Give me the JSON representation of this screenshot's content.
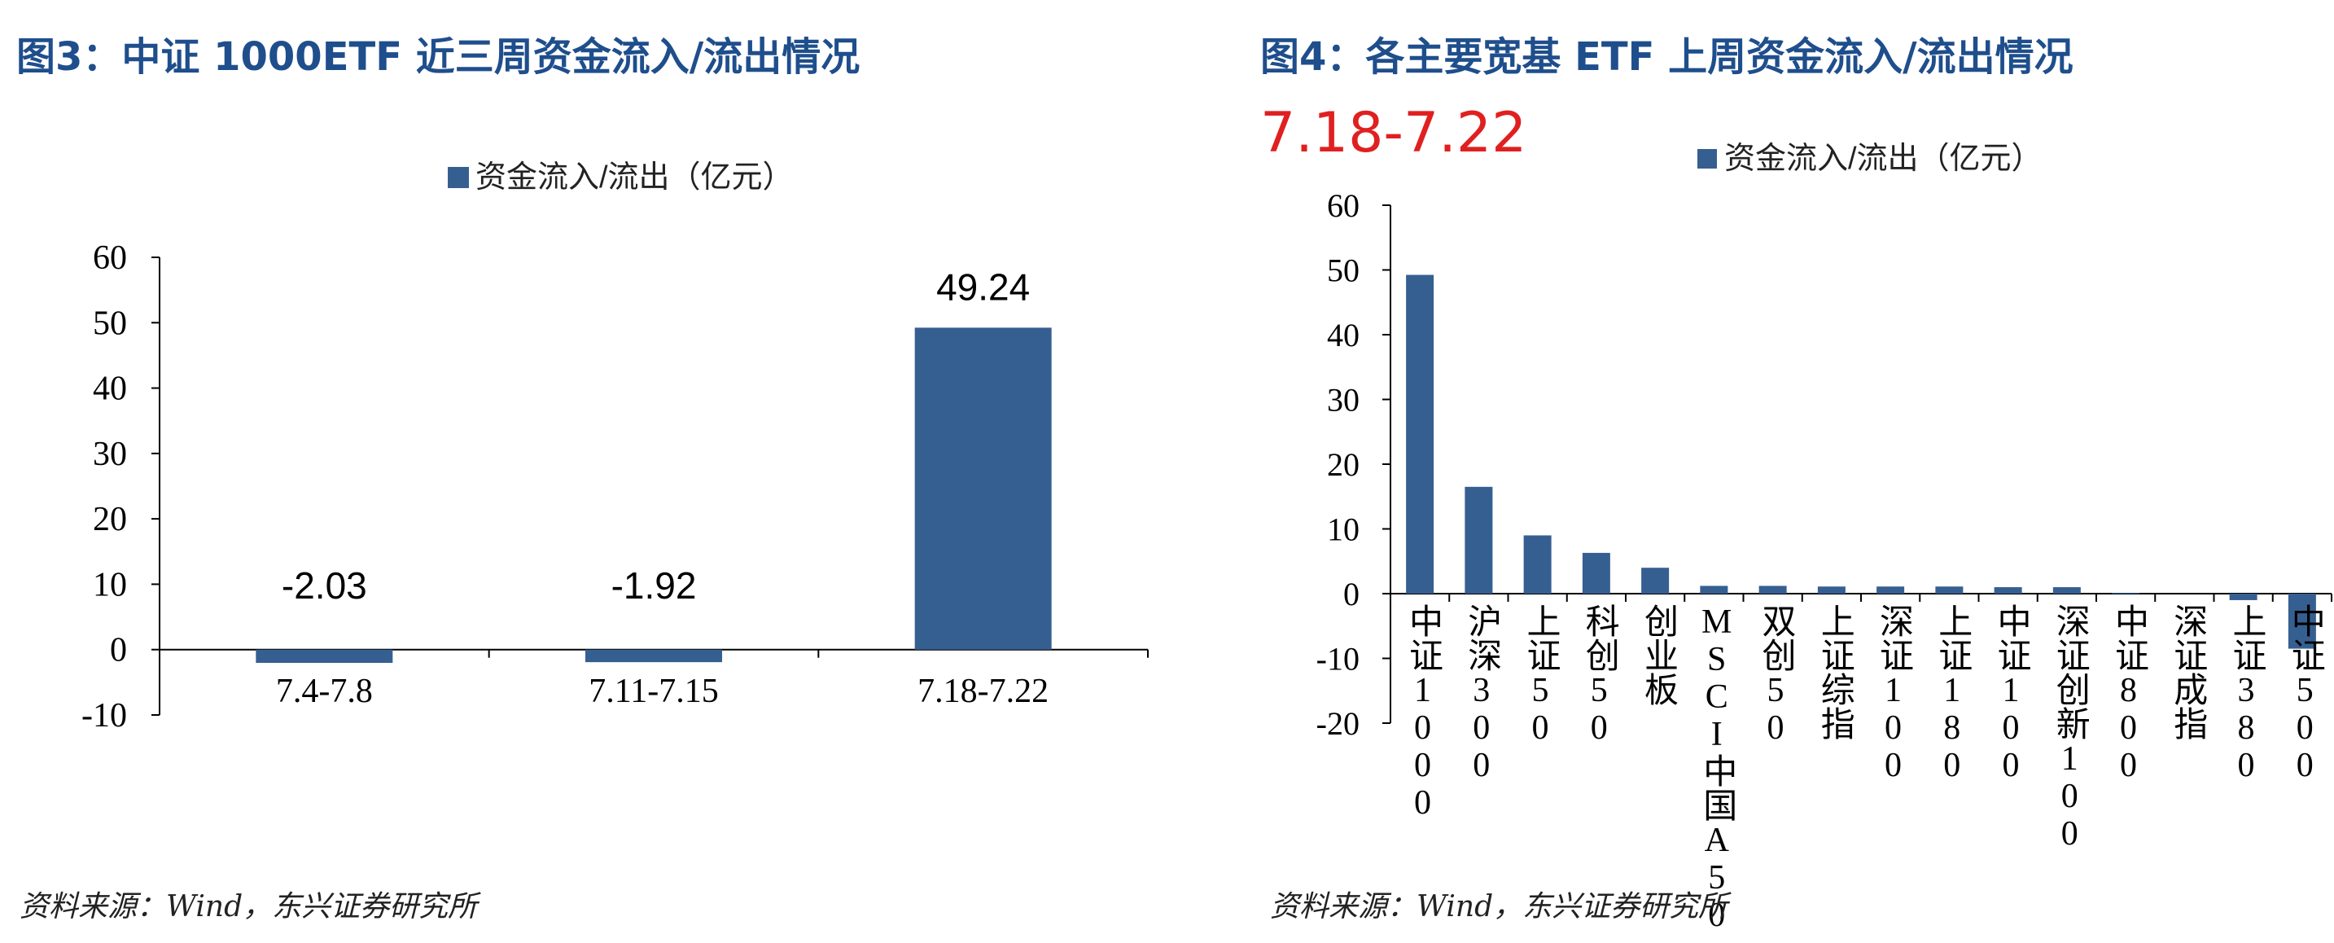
{
  "figures": [
    {
      "title": "图3：中证 1000ETF 近三周资金流入/流出情况",
      "source": "资料来源：Wind，东兴证券研究所"
    },
    {
      "title": "图4：各主要宽基 ETF 上周资金流入/流出情况",
      "subtitle": "7.18-7.22",
      "source": "资料来源：Wind，东兴证券研究所"
    }
  ],
  "colors": {
    "bar": "#365f91",
    "title": "#1f4e8c",
    "subtitle": "#e02020"
  },
  "chart_data": [
    {
      "type": "bar",
      "categories": [
        "7.4-7.8",
        "7.11-7.15",
        "7.18-7.22"
      ],
      "values": [
        -2.03,
        -1.92,
        49.24
      ],
      "data_labels": [
        "-2.03",
        "-1.92",
        "49.24"
      ],
      "legend": "资金流入/流出（亿元）",
      "legend_position": "top",
      "ylim": [
        -10,
        60
      ],
      "yticks": [
        "-10",
        "0",
        "10",
        "20",
        "30",
        "40",
        "50",
        "60"
      ],
      "grid": false
    },
    {
      "type": "bar",
      "categories": [
        "中证1000",
        "沪深300",
        "上证50",
        "科创50",
        "创业板",
        "MSCI中国A50",
        "双创50",
        "上证综指",
        "深证100",
        "上证180",
        "中证100",
        "深证创新100",
        "中证800",
        "深证成指",
        "上证380",
        "中证500"
      ],
      "values": [
        49.24,
        16.5,
        9.0,
        6.3,
        4.0,
        1.2,
        1.2,
        1.1,
        1.1,
        1.1,
        1.0,
        1.0,
        0.1,
        0,
        -1.0,
        -8.5
      ],
      "legend": "资金流入/流出（亿元）",
      "legend_position": "top",
      "ylim": [
        -20,
        60
      ],
      "yticks": [
        "-20",
        "-10",
        "0",
        "10",
        "20",
        "30",
        "40",
        "50",
        "60"
      ],
      "grid": false
    }
  ]
}
